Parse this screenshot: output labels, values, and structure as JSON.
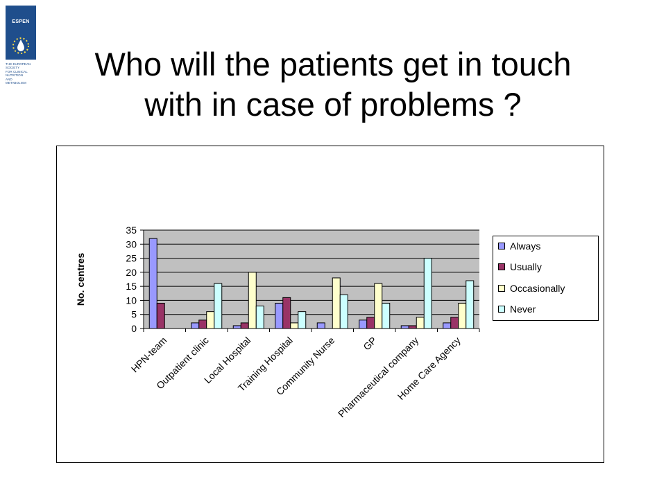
{
  "logo": {
    "word": "ESPEN",
    "subtitle_lines": [
      "THE EUROPEAN",
      "SOCIETY",
      "FOR CLINICAL",
      "NUTRITION",
      "AND",
      "METABOLISM"
    ]
  },
  "title_lines": [
    "Who will the patients get in touch",
    "with in case of problems ?"
  ],
  "colors": {
    "plot_bg": "#c0c0c0",
    "always": "#9999ff",
    "usually": "#993366",
    "occasionally": "#ffffcc",
    "never": "#ccffff"
  },
  "chart_data": {
    "type": "bar",
    "ylabel": "No. centres",
    "xlabel": "",
    "ylim": [
      0,
      35
    ],
    "yticks": [
      0,
      5,
      10,
      15,
      20,
      25,
      30,
      35
    ],
    "grid": true,
    "legend_position": "right",
    "categories": [
      "HPN-team",
      "Outpatient clinic",
      "Local Hospital",
      "Training Hospital",
      "Community Nurse",
      "GP",
      "Pharmaceutical company",
      "Home Care Agency"
    ],
    "series": [
      {
        "name": "Always",
        "color_key": "always",
        "values": [
          32,
          2,
          1,
          9,
          2,
          3,
          1,
          2
        ]
      },
      {
        "name": "Usually",
        "color_key": "usually",
        "values": [
          9,
          3,
          2,
          11,
          0,
          4,
          1,
          4
        ]
      },
      {
        "name": "Occasionally",
        "color_key": "occasionally",
        "values": [
          0,
          6,
          20,
          2,
          18,
          16,
          4,
          9
        ]
      },
      {
        "name": "Never",
        "color_key": "never",
        "values": [
          0,
          16,
          8,
          6,
          12,
          9,
          25,
          17
        ]
      }
    ]
  }
}
